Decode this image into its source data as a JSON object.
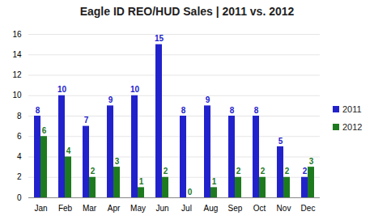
{
  "chart_data": {
    "type": "bar",
    "title": "Eagle ID REO/HUD Sales | 2011 vs. 2012",
    "categories": [
      "Jan",
      "Feb",
      "Mar",
      "Apr",
      "May",
      "Jun",
      "Jul",
      "Aug",
      "Sep",
      "Oct",
      "Nov",
      "Dec"
    ],
    "series": [
      {
        "name": "2011",
        "color": "#2222cc",
        "values": [
          8,
          10,
          7,
          9,
          10,
          15,
          8,
          9,
          8,
          8,
          5,
          2
        ]
      },
      {
        "name": "2012",
        "color": "#1e7a1e",
        "values": [
          6,
          4,
          2,
          3,
          1,
          2,
          0,
          1,
          2,
          2,
          2,
          3
        ]
      }
    ],
    "ylim": [
      0,
      16
    ],
    "yticks": [
      0,
      2,
      4,
      6,
      8,
      10,
      12,
      14,
      16
    ],
    "grid": true,
    "legend": "right",
    "data_labels": true
  }
}
